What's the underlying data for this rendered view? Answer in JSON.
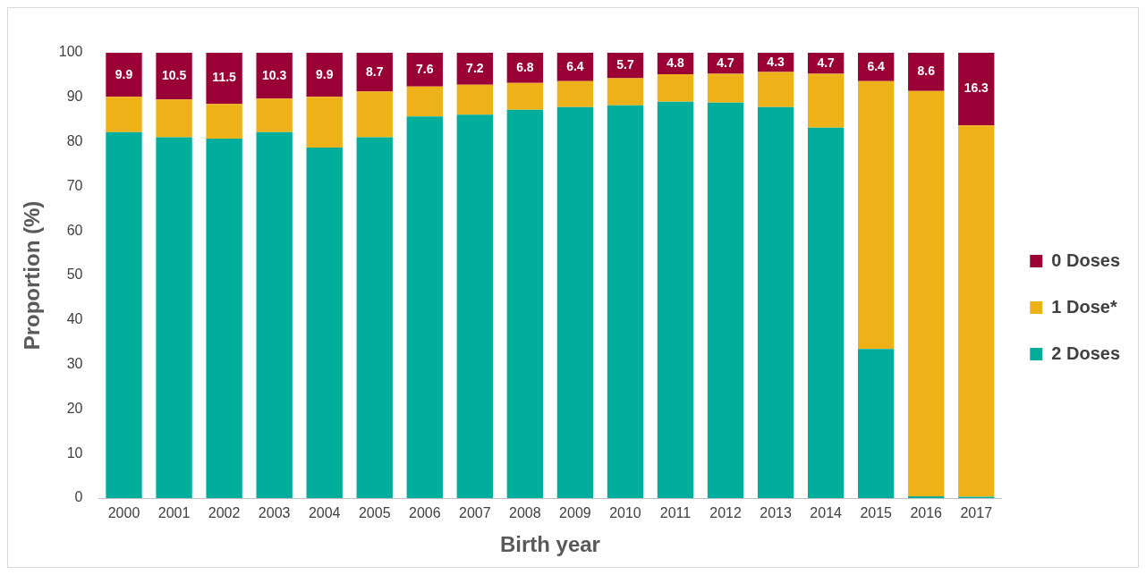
{
  "chart_data": {
    "type": "bar",
    "stacked": true,
    "xlabel": "Birth year",
    "ylabel": "Proportion (%)",
    "categories": [
      "2000",
      "2001",
      "2002",
      "2003",
      "2004",
      "2005",
      "2006",
      "2007",
      "2008",
      "2009",
      "2010",
      "2011",
      "2012",
      "2013",
      "2014",
      "2015",
      "2016",
      "2017"
    ],
    "series": [
      {
        "name": "2 Doses",
        "color": "#00ae9b",
        "values": [
          82.2,
          81.0,
          80.7,
          82.2,
          78.7,
          81.0,
          85.7,
          86.1,
          87.2,
          87.8,
          88.2,
          89.0,
          88.8,
          87.8,
          83.2,
          33.5,
          0.4,
          0.3
        ]
      },
      {
        "name": "1 Dose*",
        "color": "#efb118",
        "values": [
          7.9,
          8.5,
          7.8,
          7.5,
          11.4,
          10.3,
          6.7,
          6.7,
          6.0,
          5.8,
          6.1,
          6.2,
          6.5,
          7.9,
          12.1,
          60.1,
          91.0,
          83.4
        ]
      },
      {
        "name": "0 Doses",
        "color": "#9a0036",
        "values": [
          9.9,
          10.5,
          11.5,
          10.3,
          9.9,
          8.7,
          7.6,
          7.2,
          6.8,
          6.4,
          5.7,
          4.8,
          4.7,
          4.3,
          4.7,
          6.4,
          8.6,
          16.3
        ],
        "value_labels": [
          "9.9",
          "10.5",
          "11.5",
          "10.3",
          "9.9",
          "8.7",
          "7.6",
          "7.2",
          "6.8",
          "6.4",
          "5.7",
          "4.8",
          "4.7",
          "4.3",
          "4.7",
          "6.4",
          "8.6",
          "16.3"
        ]
      }
    ],
    "ylim": [
      0,
      100
    ],
    "yticks": [
      0,
      10,
      20,
      30,
      40,
      50,
      60,
      70,
      80,
      90,
      100
    ],
    "grid": false,
    "legend": "right"
  }
}
